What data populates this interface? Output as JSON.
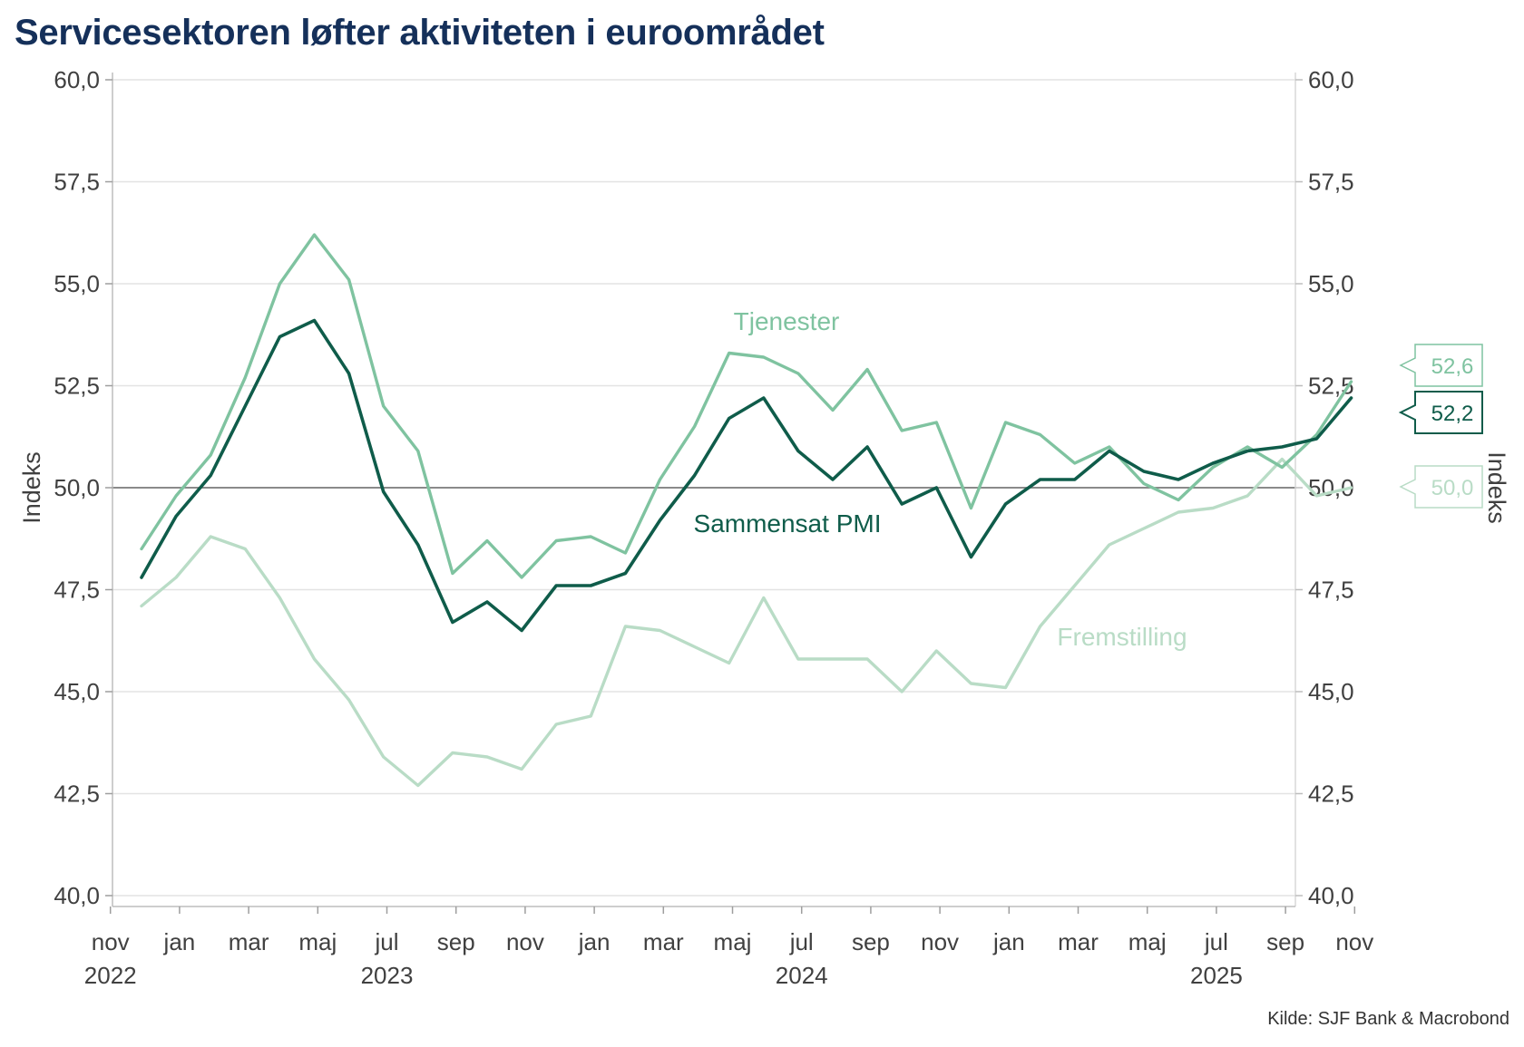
{
  "title": "Servicesektoren løfter aktiviteten i euroområdet",
  "source": "Kilde: SJF Bank & Macrobond",
  "chart_data": {
    "type": "line",
    "title": "Servicesektoren løfter aktiviteten i euroområdet",
    "ylabel": "Indeks",
    "ylabel_right": "Indeks",
    "ylim": [
      40,
      60
    ],
    "yticks": [
      40,
      42.5,
      45,
      47.5,
      50,
      52.5,
      55,
      57.5,
      60
    ],
    "ytick_labels": [
      "40,0",
      "42,5",
      "45,0",
      "47,5",
      "50,0",
      "52,5",
      "55,0",
      "57,5",
      "60,0"
    ],
    "reference_line": 50,
    "grid": "horizontal",
    "legend": "inline labels",
    "x": [
      "2022-11",
      "2022-12",
      "2023-01",
      "2023-02",
      "2023-03",
      "2023-04",
      "2023-05",
      "2023-06",
      "2023-07",
      "2023-08",
      "2023-09",
      "2023-10",
      "2023-11",
      "2023-12",
      "2024-01",
      "2024-02",
      "2024-03",
      "2024-04",
      "2024-05",
      "2024-06",
      "2024-07",
      "2024-08",
      "2024-09",
      "2024-10",
      "2024-11",
      "2024-12",
      "2025-01",
      "2025-02",
      "2025-03",
      "2025-04",
      "2025-05",
      "2025-06",
      "2025-07",
      "2025-08",
      "2025-09",
      "2025-10"
    ],
    "xticks": [
      {
        "month": "nov",
        "year": "2022"
      },
      {
        "month": "jan",
        "year": ""
      },
      {
        "month": "mar",
        "year": ""
      },
      {
        "month": "maj",
        "year": ""
      },
      {
        "month": "jul",
        "year": "2023"
      },
      {
        "month": "sep",
        "year": ""
      },
      {
        "month": "nov",
        "year": ""
      },
      {
        "month": "jan",
        "year": ""
      },
      {
        "month": "mar",
        "year": ""
      },
      {
        "month": "maj",
        "year": ""
      },
      {
        "month": "jul",
        "year": "2024"
      },
      {
        "month": "sep",
        "year": ""
      },
      {
        "month": "nov",
        "year": ""
      },
      {
        "month": "jan",
        "year": ""
      },
      {
        "month": "mar",
        "year": ""
      },
      {
        "month": "maj",
        "year": ""
      },
      {
        "month": "jul",
        "year": "2025"
      },
      {
        "month": "sep",
        "year": ""
      },
      {
        "month": "nov",
        "year": ""
      }
    ],
    "series": [
      {
        "name": "Fremstilling",
        "color": "#b9dcc6",
        "values": [
          47.1,
          47.8,
          48.8,
          48.5,
          47.3,
          45.8,
          44.8,
          43.4,
          42.7,
          43.5,
          43.4,
          43.1,
          44.2,
          44.4,
          46.6,
          46.5,
          46.1,
          45.7,
          47.3,
          45.8,
          45.8,
          45.8,
          45.0,
          46.0,
          45.2,
          45.1,
          46.6,
          47.6,
          48.6,
          49.0,
          49.4,
          49.5,
          49.8,
          50.7,
          49.8,
          50.0
        ],
        "end_label": "50,0"
      },
      {
        "name": "Tjenester",
        "color": "#7fc3a0",
        "values": [
          48.5,
          49.8,
          50.8,
          52.7,
          55.0,
          56.2,
          55.1,
          52.0,
          50.9,
          47.9,
          48.7,
          47.8,
          48.7,
          48.8,
          48.4,
          50.2,
          51.5,
          53.3,
          53.2,
          52.8,
          51.9,
          52.9,
          51.4,
          51.6,
          49.5,
          51.6,
          51.3,
          50.6,
          51.0,
          50.1,
          49.7,
          50.5,
          51.0,
          50.5,
          51.3,
          52.6
        ],
        "end_label": "52,6"
      },
      {
        "name": "Sammensat PMI",
        "color": "#0f5c4a",
        "values": [
          47.8,
          49.3,
          50.3,
          52.0,
          53.7,
          54.1,
          52.8,
          49.9,
          48.6,
          46.7,
          47.2,
          46.5,
          47.6,
          47.6,
          47.9,
          49.2,
          50.3,
          51.7,
          52.2,
          50.9,
          50.2,
          51.0,
          49.6,
          50.0,
          48.3,
          49.6,
          50.2,
          50.2,
          50.9,
          50.4,
          50.2,
          50.6,
          50.9,
          51.0,
          51.2,
          52.2
        ],
        "end_label": "52,2"
      }
    ]
  }
}
